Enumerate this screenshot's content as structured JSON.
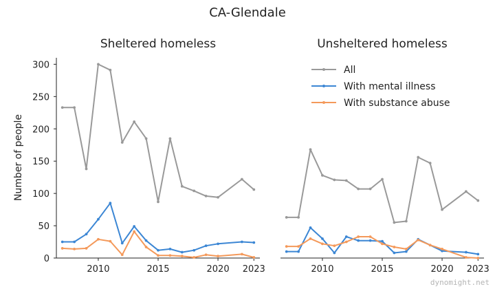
{
  "suptitle": "CA-Glendale",
  "watermark": "dynomight.net",
  "chart_data": [
    {
      "type": "line",
      "title": "Sheltered homeless",
      "ylabel": "Number of people",
      "xlabel": "",
      "xlim": [
        2006.5,
        2023.5
      ],
      "ylim": [
        0,
        310
      ],
      "xticks": [
        2010,
        2015,
        2020,
        2023
      ],
      "yticks": [
        0,
        50,
        100,
        150,
        200,
        250,
        300
      ],
      "grid": false,
      "series": [
        {
          "name": "All",
          "color": "#999999",
          "x": [
            2007,
            2008,
            2009,
            2010,
            2011,
            2012,
            2013,
            2014,
            2015,
            2016,
            2017,
            2018,
            2019,
            2020,
            2022,
            2023
          ],
          "values": [
            233,
            233,
            138,
            300,
            291,
            179,
            211,
            185,
            87,
            185,
            111,
            104,
            96,
            94,
            122,
            106
          ]
        },
        {
          "name": "With mental illness",
          "color": "#3b86d4",
          "x": [
            2007,
            2008,
            2009,
            2010,
            2011,
            2012,
            2013,
            2014,
            2015,
            2016,
            2017,
            2018,
            2019,
            2020,
            2022,
            2023
          ],
          "values": [
            25,
            25,
            37,
            60,
            85,
            23,
            49,
            27,
            12,
            14,
            9,
            12,
            19,
            22,
            25,
            24
          ]
        },
        {
          "name": "With substance abuse",
          "color": "#f4995a",
          "x": [
            2007,
            2008,
            2009,
            2010,
            2011,
            2012,
            2013,
            2014,
            2015,
            2016,
            2017,
            2018,
            2019,
            2020,
            2022,
            2023
          ],
          "values": [
            15,
            14,
            15,
            29,
            26,
            5,
            41,
            17,
            4,
            4,
            3,
            1,
            5,
            3,
            6,
            1
          ]
        }
      ]
    },
    {
      "type": "line",
      "title": "Unsheltered homeless",
      "ylabel": "",
      "xlabel": "",
      "xlim": [
        2006.5,
        2023.5
      ],
      "ylim": [
        0,
        310
      ],
      "xticks": [
        2010,
        2015,
        2020,
        2023
      ],
      "yticks": [],
      "grid": false,
      "legend": {
        "placement": "top-center"
      },
      "series": [
        {
          "name": "All",
          "color": "#999999",
          "x": [
            2007,
            2008,
            2009,
            2010,
            2011,
            2012,
            2013,
            2014,
            2015,
            2016,
            2017,
            2018,
            2019,
            2020,
            2022,
            2023
          ],
          "values": [
            63,
            63,
            168,
            128,
            121,
            120,
            107,
            107,
            122,
            55,
            57,
            156,
            147,
            75,
            103,
            89
          ]
        },
        {
          "name": "With mental illness",
          "color": "#3b86d4",
          "x": [
            2007,
            2008,
            2009,
            2010,
            2011,
            2012,
            2013,
            2014,
            2015,
            2016,
            2017,
            2018,
            2019,
            2020,
            2022,
            2023
          ],
          "values": [
            10,
            10,
            47,
            30,
            8,
            33,
            27,
            27,
            26,
            8,
            10,
            29,
            20,
            11,
            9,
            6
          ]
        },
        {
          "name": "With substance abuse",
          "color": "#f4995a",
          "x": [
            2007,
            2008,
            2009,
            2010,
            2011,
            2012,
            2013,
            2014,
            2015,
            2016,
            2017,
            2018,
            2019,
            2020,
            2022,
            2023
          ],
          "values": [
            18,
            18,
            30,
            22,
            19,
            25,
            33,
            33,
            22,
            17,
            14,
            28,
            20,
            14,
            1,
            0
          ]
        }
      ]
    }
  ]
}
